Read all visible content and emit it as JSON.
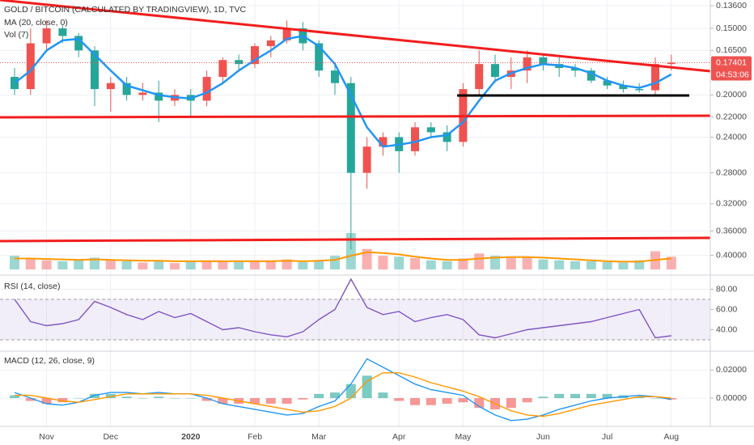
{
  "chart_data": [
    {
      "type": "candlestick",
      "title": "GOLD / BITCOIN (CALCULATED BY TRADINGVIEW), 1D, TVC",
      "categories": [
        null,
        null,
        "Nov",
        null,
        null,
        null,
        "Dec",
        null,
        null,
        null,
        null,
        "2020",
        null,
        null,
        null,
        "Feb",
        null,
        null,
        null,
        "Mar",
        null,
        null,
        null,
        null,
        "Apr",
        null,
        null,
        null,
        "May",
        null,
        null,
        null,
        null,
        "Jun",
        null,
        null,
        null,
        "Jul",
        null,
        null,
        null,
        "Aug"
      ],
      "open": [
        0.185,
        0.195,
        0.16,
        0.15,
        0.155,
        0.165,
        0.195,
        0.19,
        0.2,
        0.198,
        0.205,
        0.2,
        0.205,
        0.185,
        0.172,
        0.175,
        0.162,
        0.158,
        0.15,
        0.16,
        0.18,
        0.19,
        0.28,
        0.25,
        0.24,
        0.255,
        0.23,
        0.235,
        0.245,
        0.195,
        0.175,
        0.185,
        0.18,
        0.17,
        0.175,
        0.178,
        0.18,
        0.188,
        0.192,
        0.195,
        0.196,
        0.175
      ],
      "high": [
        0.2,
        0.2,
        0.165,
        0.16,
        0.17,
        0.21,
        0.215,
        0.205,
        0.205,
        0.225,
        0.21,
        0.22,
        0.21,
        0.19,
        0.18,
        0.178,
        0.17,
        0.16,
        0.165,
        0.185,
        0.2,
        0.39,
        0.3,
        0.26,
        0.28,
        0.26,
        0.24,
        0.255,
        0.25,
        0.2,
        0.19,
        0.195,
        0.19,
        0.18,
        0.185,
        0.185,
        0.19,
        0.195,
        0.198,
        0.198,
        0.2,
        0.18
      ],
      "low": [
        0.178,
        0.15,
        0.145,
        0.148,
        0.153,
        0.162,
        0.185,
        0.185,
        0.19,
        0.188,
        0.195,
        0.195,
        0.18,
        0.17,
        0.168,
        0.16,
        0.155,
        0.145,
        0.146,
        0.158,
        0.175,
        0.185,
        0.24,
        0.235,
        0.235,
        0.225,
        0.225,
        0.228,
        0.19,
        0.165,
        0.168,
        0.17,
        0.165,
        0.168,
        0.17,
        0.175,
        0.178,
        0.185,
        0.188,
        0.19,
        0.17,
        0.168
      ],
      "close": [
        0.195,
        0.16,
        0.15,
        0.155,
        0.165,
        0.195,
        0.19,
        0.2,
        0.198,
        0.205,
        0.2,
        0.205,
        0.185,
        0.172,
        0.175,
        0.162,
        0.158,
        0.15,
        0.16,
        0.18,
        0.19,
        0.28,
        0.25,
        0.24,
        0.255,
        0.23,
        0.235,
        0.245,
        0.195,
        0.175,
        0.185,
        0.18,
        0.17,
        0.175,
        0.178,
        0.18,
        0.188,
        0.192,
        0.195,
        0.196,
        0.175,
        0.17401
      ],
      "up_color": "#26a69a",
      "down_color": "#ef5350",
      "series": [
        {
          "name": "MA (20, close, 0)",
          "color": "#2196f3",
          "values": [
            0.19,
            0.18,
            0.165,
            0.158,
            0.157,
            0.168,
            0.18,
            0.192,
            0.196,
            0.2,
            0.202,
            0.203,
            0.198,
            0.19,
            0.18,
            0.172,
            0.165,
            0.157,
            0.155,
            0.162,
            0.175,
            0.2,
            0.23,
            0.25,
            0.248,
            0.245,
            0.24,
            0.238,
            0.225,
            0.205,
            0.188,
            0.182,
            0.178,
            0.175,
            0.176,
            0.178,
            0.182,
            0.188,
            0.192,
            0.194,
            0.19,
            0.183
          ]
        }
      ],
      "volume": {
        "name": "Vol (7)",
        "ma_color": "#ff9800",
        "values": [
          30,
          25,
          20,
          18,
          22,
          26,
          20,
          18,
          15,
          20,
          14,
          18,
          20,
          18,
          16,
          20,
          18,
          22,
          16,
          20,
          30,
          80,
          45,
          30,
          28,
          25,
          20,
          18,
          24,
          35,
          30,
          25,
          28,
          22,
          20,
          18,
          18,
          16,
          15,
          20,
          40,
          28
        ],
        "ma_values": [
          24,
          24,
          23,
          22,
          21,
          22,
          21,
          20,
          19,
          19,
          18,
          18,
          18,
          18,
          18,
          18,
          18,
          19,
          18,
          19,
          21,
          30,
          38,
          36,
          33,
          28,
          24,
          21,
          21,
          24,
          26,
          27,
          27,
          26,
          24,
          22,
          20,
          18,
          17,
          17,
          21,
          24
        ]
      },
      "log": true,
      "inverted": true,
      "ylim": [
        0.1327,
        0.428
      ],
      "yticks": [
        {
          "value": 0.136,
          "label": "0.13600"
        },
        {
          "value": 0.15,
          "label": "0.15000"
        },
        {
          "value": 0.165,
          "label": "0.16500"
        },
        {
          "value": 0.2,
          "label": "0.20000"
        },
        {
          "value": 0.22,
          "label": "0.22000"
        },
        {
          "value": 0.24,
          "label": "0.24000"
        },
        {
          "value": 0.28,
          "label": "0.28000"
        },
        {
          "value": 0.32,
          "label": "0.32000"
        },
        {
          "value": 0.36,
          "label": "0.36000"
        },
        {
          "value": 0.4,
          "label": "0.40000"
        }
      ],
      "last_price": {
        "value": 0.17401,
        "label": "0.17401"
      },
      "countdown": "04:53:06",
      "grid": true
    },
    {
      "type": "line",
      "title": "RSI (14, close)",
      "series": [
        {
          "color": "#7e57c2",
          "values": [
            70,
            48,
            44,
            46,
            50,
            68,
            62,
            55,
            50,
            58,
            52,
            56,
            48,
            40,
            42,
            38,
            35,
            33,
            38,
            50,
            60,
            90,
            62,
            55,
            58,
            48,
            52,
            55,
            50,
            35,
            32,
            36,
            40,
            42,
            44,
            46,
            48,
            52,
            56,
            60,
            32,
            34
          ]
        }
      ],
      "band": [
        30,
        70
      ],
      "band_color": "#7e57c2",
      "ylim": [
        22,
        90
      ],
      "yticks": [
        {
          "value": 40,
          "label": "40.00"
        },
        {
          "value": 60,
          "label": "60.00"
        },
        {
          "value": 80,
          "label": "80.00"
        }
      ],
      "grid": true
    },
    {
      "type": "line",
      "title": "MACD (12, 26, close, 9)",
      "series": [
        {
          "color": "#2196f3",
          "values": [
            0.004,
            0.0,
            -0.004,
            -0.005,
            -0.003,
            0.002,
            0.004,
            0.004,
            0.003,
            0.004,
            0.003,
            0.003,
            0.0,
            -0.004,
            -0.006,
            -0.008,
            -0.01,
            -0.012,
            -0.011,
            -0.006,
            -0.002,
            0.01,
            0.028,
            0.022,
            0.016,
            0.01,
            0.006,
            0.004,
            0.002,
            -0.006,
            -0.012,
            -0.016,
            -0.015,
            -0.012,
            -0.008,
            -0.005,
            -0.002,
            0.0,
            0.001,
            0.002,
            0.001,
            -0.001
          ]
        },
        {
          "color": "#ff9800",
          "values": [
            0.002,
            0.002,
            0.0,
            -0.002,
            -0.003,
            -0.001,
            0.001,
            0.003,
            0.003,
            0.003,
            0.003,
            0.003,
            0.002,
            0.0,
            -0.002,
            -0.004,
            -0.006,
            -0.008,
            -0.01,
            -0.009,
            -0.006,
            0.0,
            0.012,
            0.018,
            0.018,
            0.015,
            0.011,
            0.008,
            0.005,
            0.001,
            -0.004,
            -0.009,
            -0.012,
            -0.013,
            -0.011,
            -0.008,
            -0.005,
            -0.003,
            -0.001,
            0.001,
            0.001,
            0.0
          ]
        }
      ],
      "histogram": [
        0.002,
        -0.002,
        -0.004,
        -0.003,
        0.0,
        0.003,
        0.003,
        0.001,
        0.0,
        0.001,
        0.0,
        0.0,
        -0.002,
        -0.004,
        -0.004,
        -0.004,
        -0.004,
        -0.004,
        -0.001,
        0.003,
        0.004,
        0.01,
        0.016,
        0.004,
        -0.002,
        -0.005,
        -0.005,
        -0.004,
        -0.003,
        -0.007,
        -0.008,
        -0.007,
        -0.003,
        0.001,
        0.003,
        0.003,
        0.003,
        0.003,
        0.002,
        0.001,
        0.0,
        -0.001
      ],
      "histogram_colors": [
        "#26a69a",
        "#ef5350"
      ],
      "ylim": [
        -0.019,
        0.03
      ],
      "yticks": [
        {
          "value": 0.0,
          "label": "0.00000"
        },
        {
          "value": 0.02,
          "label": "0.02000"
        }
      ],
      "grid": true
    }
  ]
}
